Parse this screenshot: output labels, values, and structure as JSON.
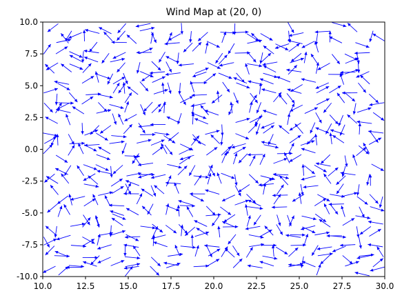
{
  "chart_data": {
    "type": "quiver",
    "title": "Wind Map at (20, 0)",
    "xlabel": "",
    "ylabel": "",
    "xlim": [
      10.0,
      30.0
    ],
    "ylim": [
      -10.0,
      10.0
    ],
    "x_ticks": [
      "10.0",
      "12.5",
      "15.0",
      "17.5",
      "20.0",
      "22.5",
      "25.0",
      "27.5",
      "30.0"
    ],
    "y_ticks": [
      "10.0",
      "7.5",
      "5.0",
      "2.5",
      "0.0",
      "-2.5",
      "-5.0",
      "-7.5",
      "-10.0"
    ],
    "x_tick_values": [
      10.0,
      12.5,
      15.0,
      17.5,
      20.0,
      22.5,
      25.0,
      27.5,
      30.0
    ],
    "y_tick_values": [
      10.0,
      7.5,
      5.0,
      2.5,
      0.0,
      -2.5,
      -5.0,
      -7.5,
      -10.0
    ],
    "arrow_color": "#0000ff",
    "grid": false,
    "grid_x_start": 10.0,
    "grid_x_step": 0.8,
    "grid_x_count": 26,
    "grid_y_start": -10.0,
    "grid_y_step": 0.8,
    "grid_y_count": 26,
    "arrow_length": 0.9,
    "direction_seed": 20
  }
}
